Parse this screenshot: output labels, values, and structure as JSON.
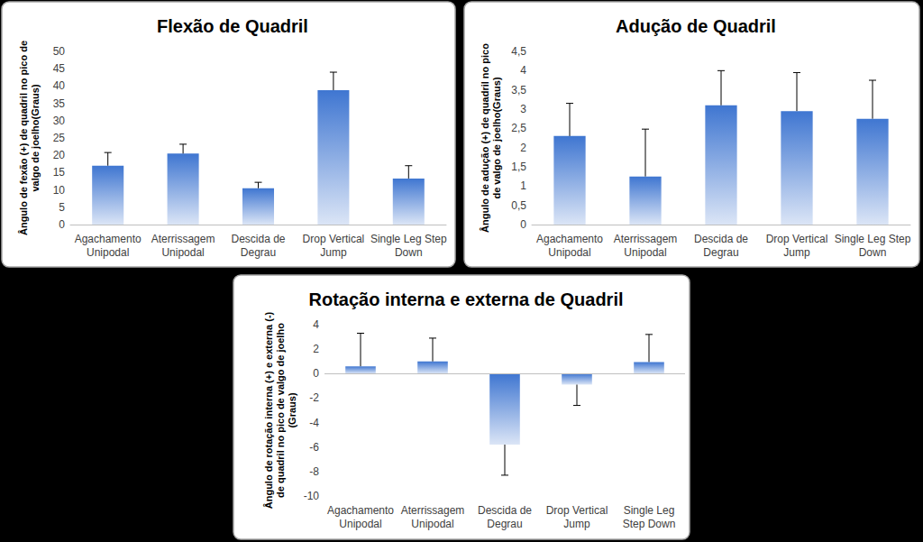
{
  "chart_data": [
    {
      "type": "bar",
      "title": "Flexão de Quadril",
      "ylabel": "Ângulo de fexão (+) de quadril no pico de\nvalgo de joelho(Graus)",
      "categories": [
        "Agachamento\nUnipodal",
        "Aterrissagem\nUnipodal",
        "Descida de\nDegrau",
        "Drop Vertical\nJump",
        "Single Leg Step\nDown"
      ],
      "values": [
        17,
        20.5,
        10.5,
        38.8,
        13.3
      ],
      "errors": [
        3.8,
        2.7,
        1.7,
        5.2,
        3.7
      ],
      "color": "#3f76d1",
      "ylim": [
        0,
        50
      ],
      "yticks": [
        0,
        5,
        10,
        15,
        20,
        25,
        30,
        35,
        40,
        45,
        50
      ],
      "grid": false
    },
    {
      "type": "bar",
      "title": "Adução de Quadril",
      "ylabel": "Ângulo de adução (+) de quadril no pico\nde valgo de joelho(Graus)",
      "categories": [
        "Agachamento\nUnipodal",
        "Aterrissagem\nUnipodal",
        "Descida de\nDegrau",
        "Drop Vertical\nJump",
        "Single Leg Step\nDown"
      ],
      "values": [
        2.3,
        1.25,
        3.1,
        2.95,
        2.75
      ],
      "errors": [
        0.85,
        1.23,
        0.9,
        1.0,
        1.0
      ],
      "color": "#3f76d1",
      "ylim": [
        0,
        4.5
      ],
      "yticks": [
        0,
        {
          "value": 0.5,
          "label": "0,5"
        },
        1,
        {
          "value": 1.5,
          "label": "1,5"
        },
        2,
        {
          "value": 2.5,
          "label": "2,5"
        },
        3,
        {
          "value": 3.5,
          "label": "3,5"
        },
        4,
        {
          "value": 4.5,
          "label": "4,5"
        }
      ],
      "grid": false
    },
    {
      "type": "bar",
      "title": "Rotação interna e externa de Quadril",
      "ylabel": "Ângulo de rotação interna (+) e externa (-)\nde quadril no pico de valgo de joelho\n(Graus)",
      "categories": [
        "Agachamento\nUnipodal",
        "Aterrissagem\nUnipodal",
        "Descida de\nDegrau",
        "Drop Vertical\nJump",
        "Single Leg\nStep Down"
      ],
      "values": [
        0.6,
        1.0,
        -5.8,
        -0.9,
        0.95
      ],
      "errors": [
        2.7,
        1.9,
        2.5,
        1.7,
        2.25
      ],
      "color": "#3f76d1",
      "ylim": [
        -10,
        4
      ],
      "yticks": [
        -10,
        -8,
        -6,
        -4,
        -2,
        0,
        2,
        4
      ],
      "grid": false
    }
  ]
}
